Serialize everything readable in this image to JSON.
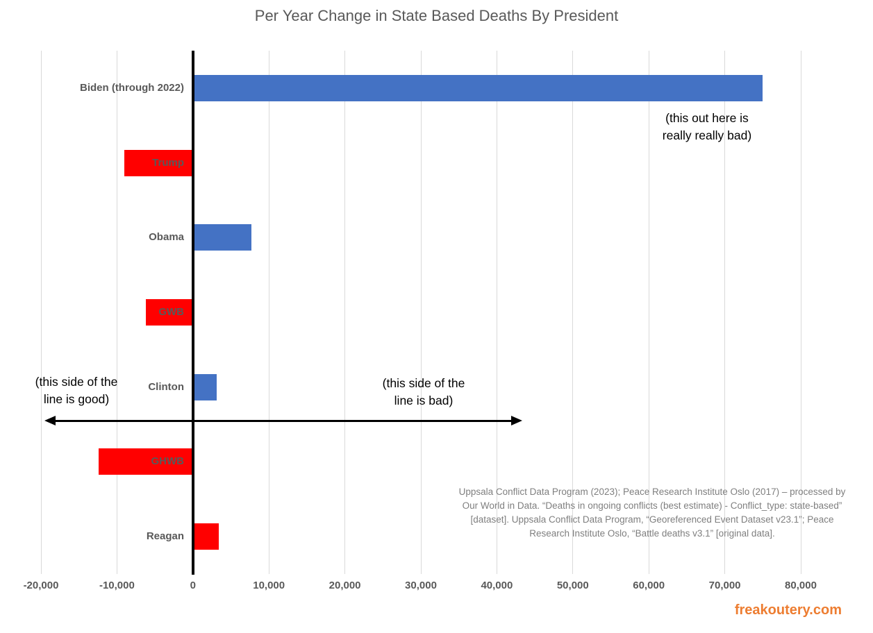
{
  "title": "Per Year Change in State Based Deaths By President",
  "chart_data": {
    "type": "bar",
    "orientation": "horizontal",
    "title": "Per Year Change in State Based Deaths By President",
    "xlabel": "",
    "ylabel": "",
    "categories": [
      "Biden (through 2022)",
      "Trump",
      "Obama",
      "GWB",
      "Clinton",
      "GHWB",
      "Reagan"
    ],
    "values": [
      75000,
      -9000,
      7700,
      -6200,
      3100,
      -12400,
      3400
    ],
    "bar_colors": [
      "#4472C4",
      "#FF0000",
      "#4472C4",
      "#FF0000",
      "#4472C4",
      "#FF0000",
      "#FF0000"
    ],
    "xlim": [
      -20000,
      80000
    ],
    "x_tick_values": [
      -20000,
      -10000,
      0,
      10000,
      20000,
      30000,
      40000,
      50000,
      60000,
      70000,
      80000
    ],
    "x_tick_labels": [
      "-20,000",
      "-10,000",
      "0",
      "10,000",
      "20,000",
      "30,000",
      "40,000",
      "50,000",
      "60,000",
      "70,000",
      "80,000"
    ],
    "grid": true,
    "legend": false
  },
  "annotations": {
    "really_bad": "(this out here is\nreally really bad)",
    "good": "(this side of the\nline is good)",
    "bad": "(this side of the\nline is bad)"
  },
  "source_note": "Uppsala Conflict Data Program (2023); Peace Research Institute Oslo (2017) – processed by Our World in Data. “Deaths in ongoing conflicts (best estimate) - Conflict_type: state-based” [dataset]. Uppsala Conflict Data Program, “Georeferenced Event Dataset v23.1”; Peace Research Institute Oslo, “Battle deaths v3.1” [original data].",
  "watermark": "freakoutery.com",
  "colors": {
    "positive_blue": "#4472C4",
    "negative_red": "#FF0000",
    "gridline": "#D9D9D9",
    "axis_text": "#595959",
    "title_text": "#595959",
    "annotation_text": "#000000",
    "source_text": "#7F7F7F",
    "watermark_orange": "#ED7D31",
    "axis_line": "#000000"
  }
}
